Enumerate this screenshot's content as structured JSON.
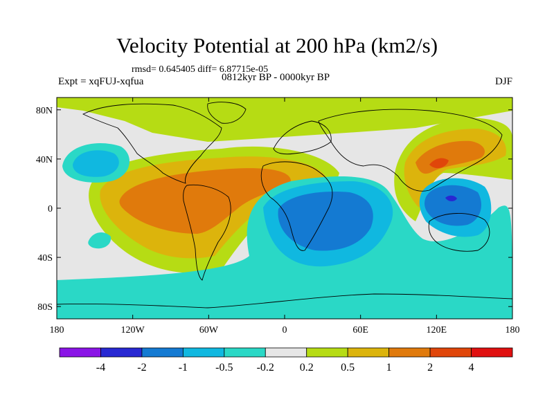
{
  "header": {
    "title": "Velocity Potential at 200 hPa (km2/s)",
    "stats": "rmsd= 0.645405 diff= 6.87715e-05",
    "experiment": "Expt = xqFUJ-xqfua",
    "period": "0812kyr BP - 0000kyr BP",
    "season": "DJF"
  },
  "map": {
    "projection": "cylindrical-equidistant",
    "lon_range": [
      -180,
      180
    ],
    "lat_range": [
      -90,
      90
    ],
    "x_ticks": [
      {
        "lon": -180,
        "label": "180"
      },
      {
        "lon": -120,
        "label": "120W"
      },
      {
        "lon": -60,
        "label": "60W"
      },
      {
        "lon": 0,
        "label": "0"
      },
      {
        "lon": 60,
        "label": "60E"
      },
      {
        "lon": 120,
        "label": "120E"
      },
      {
        "lon": 180,
        "label": "180"
      }
    ],
    "y_ticks": [
      {
        "lat": 80,
        "label": "80N"
      },
      {
        "lat": 40,
        "label": "40N"
      },
      {
        "lat": 0,
        "label": "0"
      },
      {
        "lat": -40,
        "label": "40S"
      },
      {
        "lat": -80,
        "label": "80S"
      }
    ],
    "background_color": "#e6e6e6"
  },
  "colorbar": {
    "levels": [
      "-4",
      "-2",
      "-1",
      "-0.5",
      "-0.2",
      "0.2",
      "0.5",
      "1",
      "2",
      "4"
    ],
    "colors": [
      "#8a14e6",
      "#2828d2",
      "#147ad2",
      "#10b8e0",
      "#2ad8c6",
      "#e6e6e6",
      "#b6dc14",
      "#dcb40c",
      "#e07a0c",
      "#e0460a",
      "#e01010"
    ]
  },
  "chart_data": {
    "type": "heatmap",
    "title": "Velocity Potential at 200 hPa (km2/s)",
    "units": "km2/s",
    "value_bins": [
      "<-4",
      "-4..-2",
      "-2..-1",
      "-1..-0.5",
      "-0.5..-0.2",
      "-0.2..0.2",
      "0.2..0.5",
      "0.5..1",
      "1..2",
      "2..4",
      ">4"
    ],
    "regions": [
      {
        "lon": -150,
        "lat": 28,
        "value": -1.2
      },
      {
        "lon": -160,
        "lat": -20,
        "value": -0.3
      },
      {
        "lon": -60,
        "lat": 5,
        "value": 2.2
      },
      {
        "lon": -120,
        "lat": 5,
        "value": 1.5
      },
      {
        "lon": -60,
        "lat": 60,
        "value": 0.3
      },
      {
        "lon": 50,
        "lat": -10,
        "value": -1.6
      },
      {
        "lon": 40,
        "lat": -55,
        "value": -0.35
      },
      {
        "lon": 135,
        "lat": 0,
        "value": -2.5
      },
      {
        "lon": 120,
        "lat": 45,
        "value": 1.2
      },
      {
        "lon": 0,
        "lat": 80,
        "value": 0.3
      }
    ]
  }
}
